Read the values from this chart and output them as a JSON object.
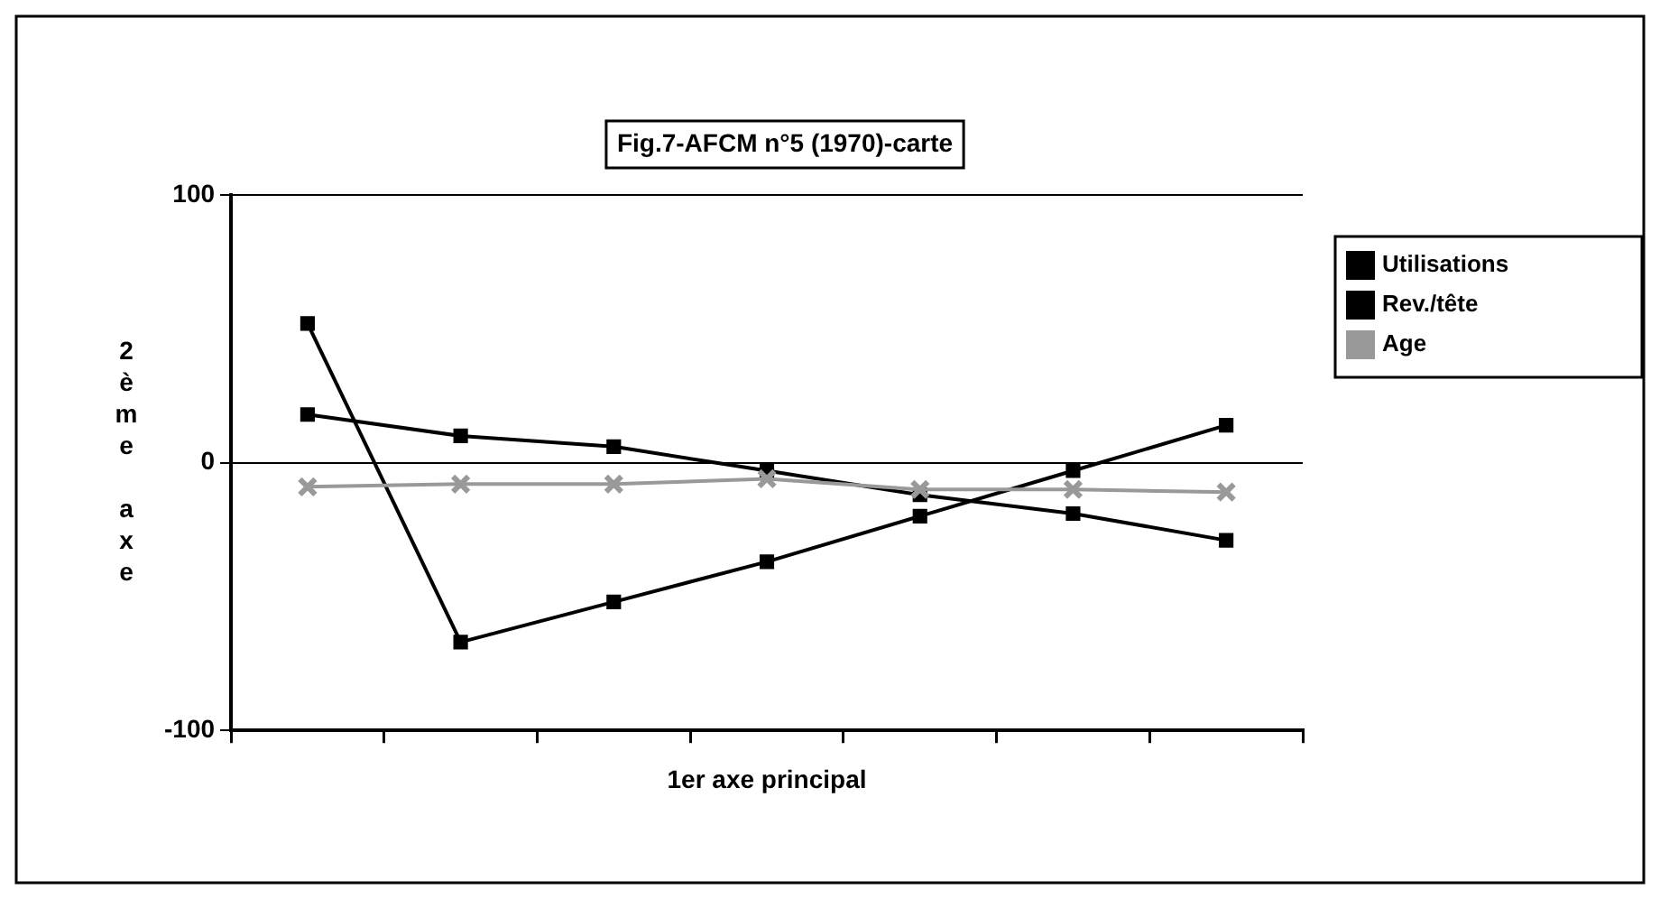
{
  "chart_data": {
    "type": "line",
    "title": "Fig.7-AFCM n°5 (1970)-carte",
    "xlabel": "1er axe principal",
    "ylabel": "2ème axe",
    "categories": [
      null,
      null,
      null,
      null,
      null,
      null,
      null
    ],
    "series": [
      {
        "name": "Utilisations",
        "color": "#000000",
        "marker": "square",
        "values": [
          52,
          -67,
          -52,
          -37,
          -20,
          -3,
          14
        ]
      },
      {
        "name": "Rev./tête",
        "color": "#000000",
        "marker": "square",
        "values": [
          18,
          10,
          6,
          -3,
          -12,
          -19,
          -29
        ]
      },
      {
        "name": "Age",
        "color": "#999999",
        "marker": "cross",
        "values": [
          -9,
          -8,
          -8,
          -6,
          -10,
          -10,
          -11
        ]
      }
    ],
    "ylim": [
      -100,
      100
    ],
    "yticks": [
      -100,
      0,
      100
    ],
    "grid": "y",
    "legend": "right"
  }
}
